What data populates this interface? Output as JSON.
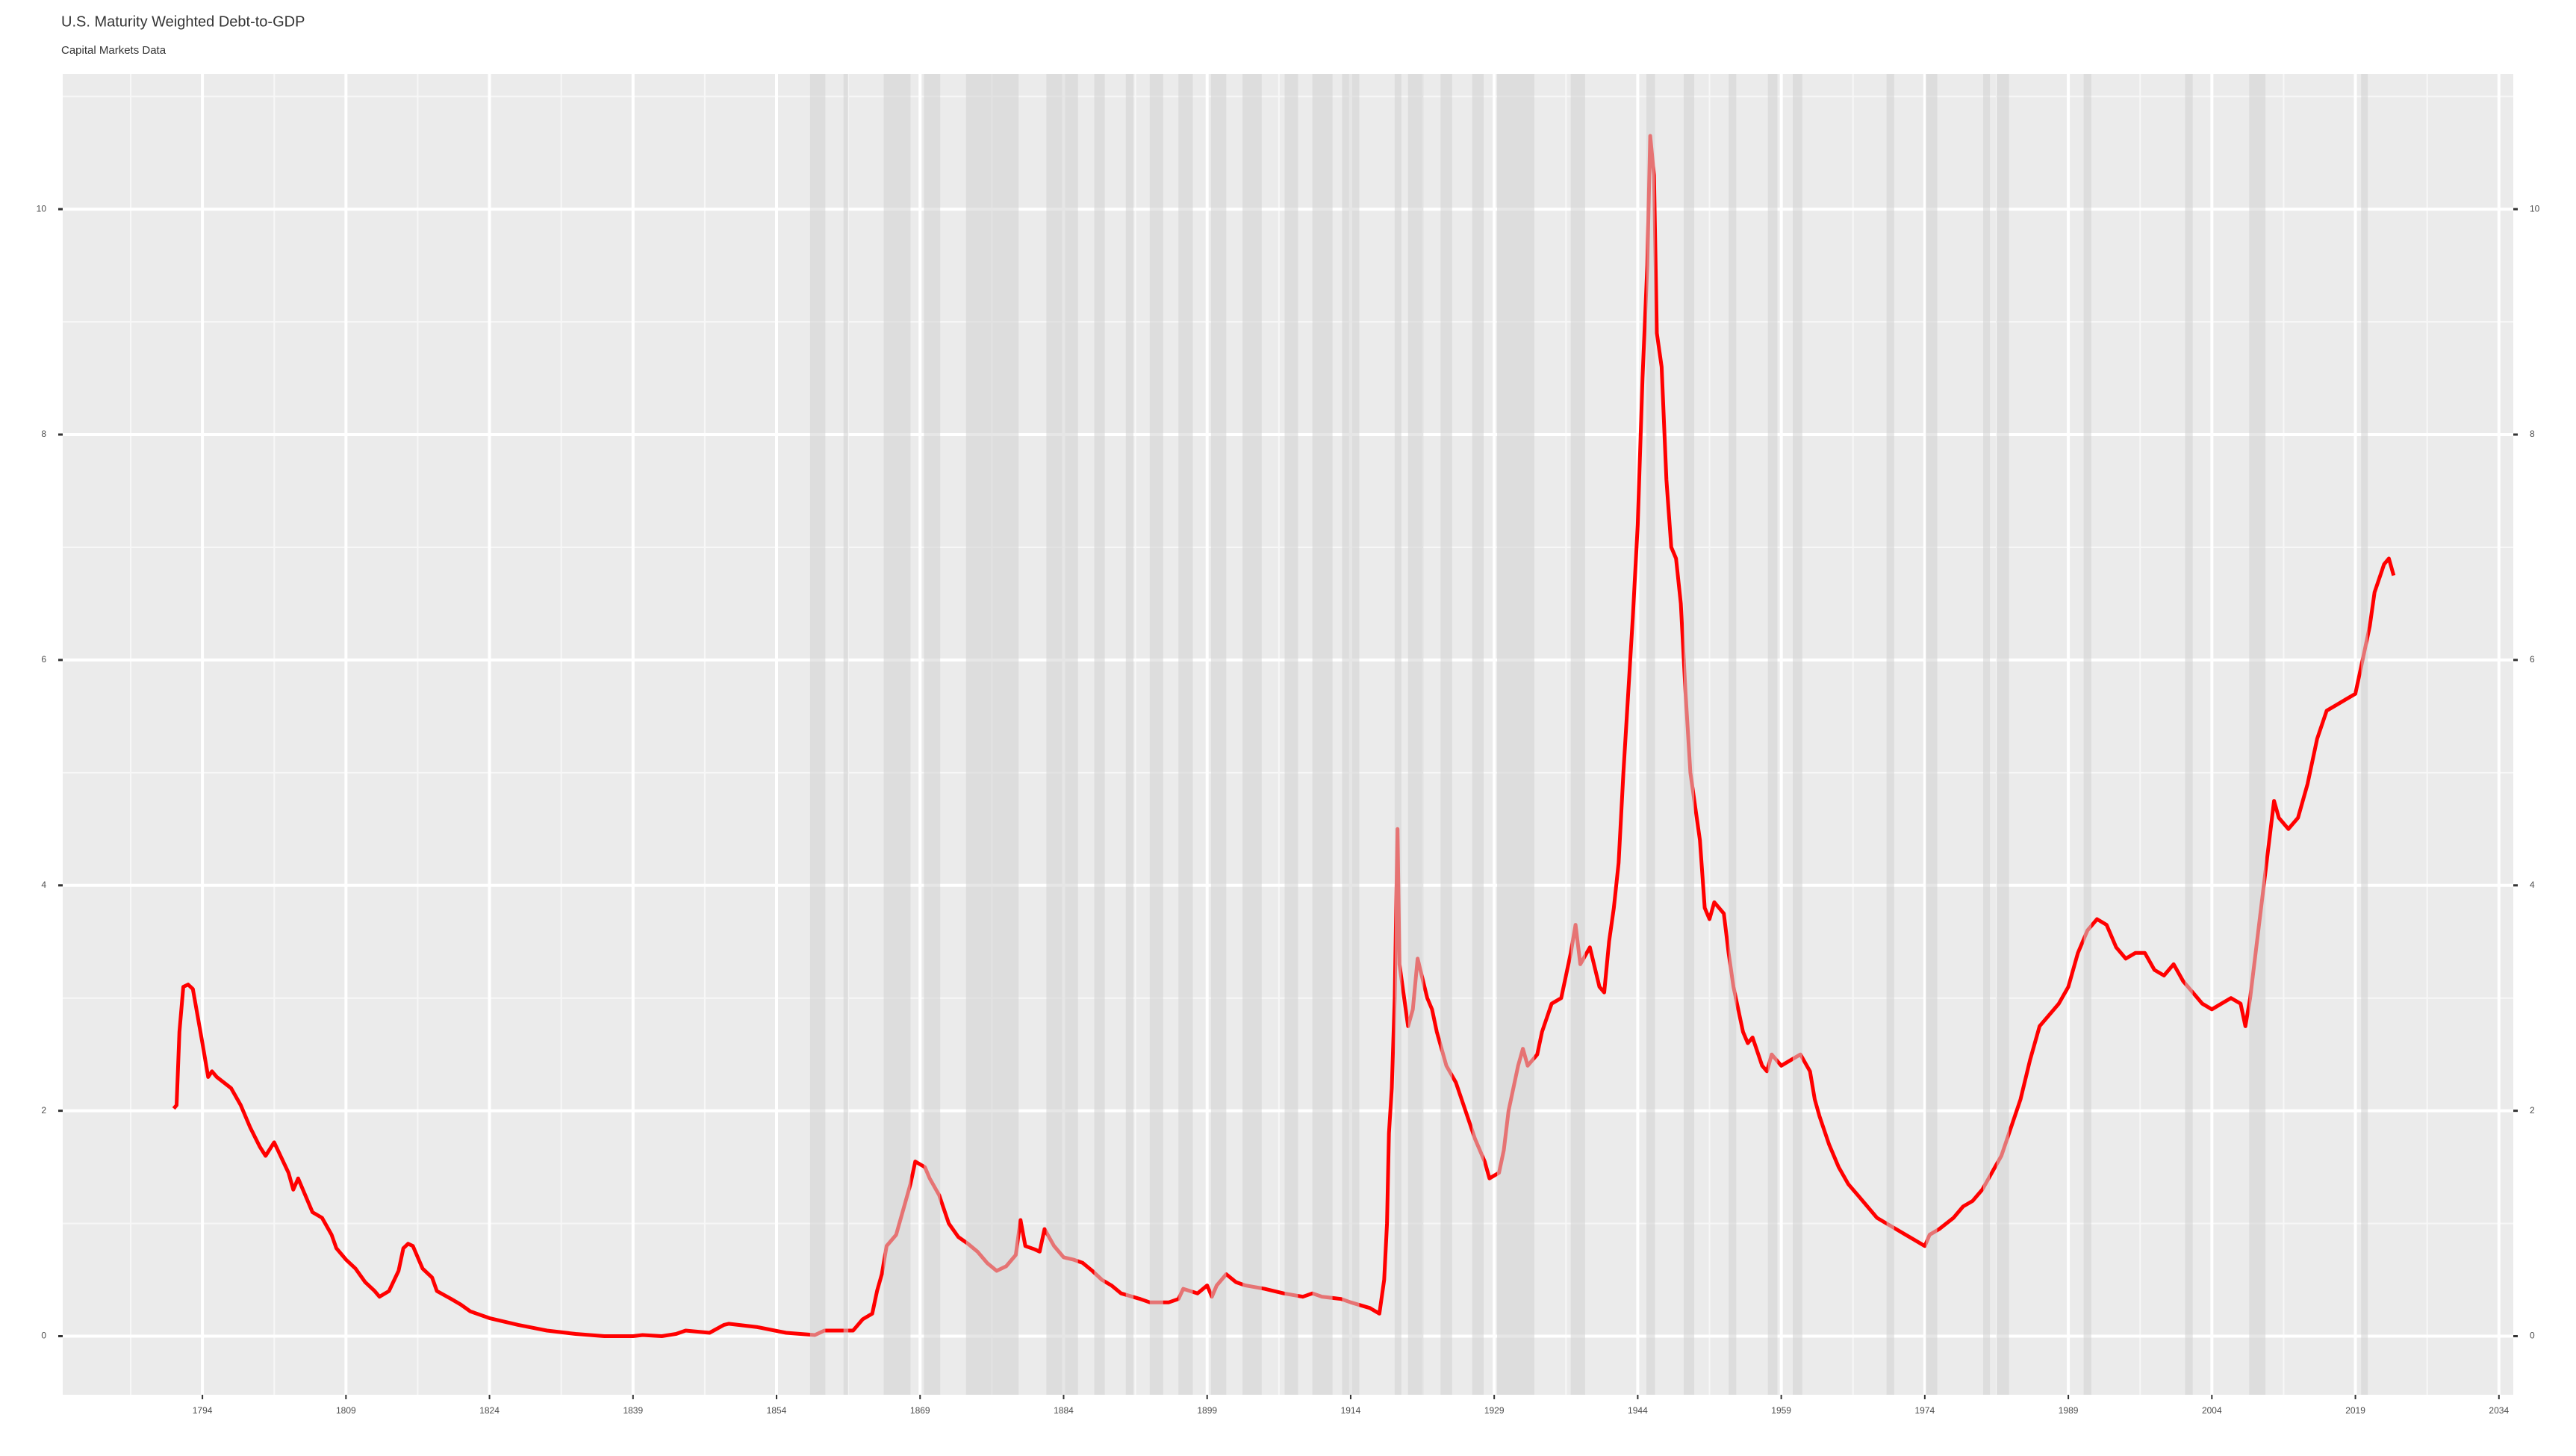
{
  "chart_data": {
    "type": "line",
    "title": "U.S. Maturity Weighted Debt-to-GDP",
    "subtitle": "Capital Markets Data",
    "xlim": [
      1779.4,
      2035.5
    ],
    "xticks": [
      1794,
      1809,
      1824,
      1839,
      1854,
      1869,
      1884,
      1899,
      1914,
      1929,
      1944,
      1959,
      1974,
      1989,
      2004,
      2019,
      2034
    ],
    "ylim": [
      -0.52,
      11.2
    ],
    "yticks": [
      0,
      2,
      4,
      6,
      8,
      10
    ],
    "grid": true,
    "secondary_axis_mirrored": true,
    "shaded_color": "#d2d2d2",
    "shaded_periods": [
      [
        1857.5,
        1859.1
      ],
      [
        1861,
        1861.5
      ],
      [
        1865.2,
        1868
      ],
      [
        1869.4,
        1871.1
      ],
      [
        1873.8,
        1879.3
      ],
      [
        1882.2,
        1885.5
      ],
      [
        1887.2,
        1888.3
      ],
      [
        1890.5,
        1891.3
      ],
      [
        1893,
        1894.4
      ],
      [
        1896,
        1897.5
      ],
      [
        1899.4,
        1901
      ],
      [
        1902.7,
        1904.7
      ],
      [
        1907.1,
        1908.5
      ],
      [
        1910,
        1912.1
      ],
      [
        1913.1,
        1914.9
      ],
      [
        1918.6,
        1919.3
      ],
      [
        1920,
        1921.6
      ],
      [
        1923.4,
        1924.6
      ],
      [
        1926.7,
        1927.9
      ],
      [
        1929.3,
        1933.2
      ],
      [
        1937,
        1938.5
      ],
      [
        1944.9,
        1945.8
      ],
      [
        1948.8,
        1949.9
      ],
      [
        1953.5,
        1954.3
      ],
      [
        1957.6,
        1958.6
      ],
      [
        1960.2,
        1961.2
      ],
      [
        1970,
        1970.8
      ],
      [
        1974.1,
        1975.3
      ],
      [
        1980.1,
        1980.8
      ],
      [
        1981.5,
        1982.8
      ],
      [
        1990.6,
        1991.4
      ],
      [
        2001.2,
        2002
      ],
      [
        2007.9,
        2009.6
      ],
      [
        2019.6,
        2020.3
      ]
    ],
    "series": [
      {
        "color": "#ff0000",
        "x": [
          1791,
          1791.3,
          1791.6,
          1792,
          1792.5,
          1793,
          1794,
          1794.6,
          1795,
          1795.5,
          1797,
          1798,
          1799,
          1800,
          1800.6,
          1801.5,
          1803,
          1803.5,
          1804,
          1805.5,
          1806.5,
          1807.5,
          1808,
          1809,
          1810,
          1811,
          1812,
          1812.5,
          1813.5,
          1814.5,
          1815,
          1815.5,
          1816,
          1817,
          1818,
          1818.5,
          1820,
          1821,
          1822,
          1824,
          1827,
          1830,
          1833,
          1836,
          1839,
          1840,
          1842,
          1843.5,
          1844.5,
          1847,
          1848.5,
          1849,
          1852,
          1855,
          1858,
          1859,
          1862,
          1863,
          1864,
          1864.5,
          1865,
          1865.5,
          1866.5,
          1867.5,
          1868,
          1868.5,
          1869.5,
          1870,
          1871,
          1872,
          1873,
          1874,
          1875,
          1876,
          1877,
          1878,
          1879,
          1879.5,
          1880,
          1881,
          1881.5,
          1882,
          1883,
          1884,
          1885,
          1886,
          1887,
          1888,
          1889,
          1890,
          1892,
          1893,
          1895,
          1896,
          1896.5,
          1898,
          1899,
          1899.5,
          1900,
          1901,
          1902,
          1903,
          1905,
          1907,
          1909,
          1910,
          1911,
          1913,
          1914,
          1916,
          1917,
          1917.5,
          1917.8,
          1918,
          1918.3,
          1918.6,
          1918.9,
          1919.1,
          1920,
          1920.5,
          1921,
          1922,
          1922.5,
          1923,
          1924,
          1925,
          1926,
          1927,
          1928,
          1928.5,
          1929.5,
          1930,
          1930.5,
          1931.5,
          1932,
          1932.5,
          1933.5,
          1934,
          1935,
          1936,
          1936.5,
          1937,
          1937.5,
          1938,
          1939,
          1940,
          1940.5,
          1941,
          1941.5,
          1942,
          1942.5,
          1943,
          1943.5,
          1944,
          1944.5,
          1945,
          1945.3,
          1945.7,
          1946,
          1946.5,
          1947,
          1947.5,
          1948,
          1948.5,
          1949,
          1949.5,
          1950,
          1950.5,
          1951,
          1951.5,
          1952,
          1953,
          1953.5,
          1954,
          1955,
          1955.5,
          1956,
          1957,
          1957.5,
          1958,
          1959,
          1960,
          1961,
          1962,
          1962.5,
          1963,
          1964,
          1965,
          1966,
          1967,
          1968,
          1969,
          1970,
          1971,
          1972,
          1973,
          1974,
          1974.5,
          1975.5,
          1977,
          1978,
          1979,
          1980,
          1981,
          1982,
          1983,
          1984,
          1985,
          1986,
          1987,
          1988,
          1989,
          1990,
          1991,
          1992,
          1993,
          1994,
          1995,
          1996,
          1997,
          1998,
          1999,
          2000,
          2001,
          2002,
          2003,
          2004,
          2005,
          2006,
          2007,
          2007.5,
          2008,
          2009,
          2010,
          2010.5,
          2011,
          2012,
          2013,
          2014,
          2015,
          2016,
          2017,
          2018,
          2019,
          2020,
          2020.5,
          2021,
          2022,
          2022.5,
          2023
        ],
        "values": [
          2.02,
          2.05,
          2.7,
          3.1,
          3.12,
          3.08,
          2.6,
          2.3,
          2.35,
          2.3,
          2.2,
          2.05,
          1.85,
          1.68,
          1.6,
          1.72,
          1.45,
          1.3,
          1.4,
          1.1,
          1.05,
          0.9,
          0.78,
          0.68,
          0.6,
          0.48,
          0.4,
          0.35,
          0.4,
          0.58,
          0.78,
          0.82,
          0.8,
          0.6,
          0.52,
          0.4,
          0.33,
          0.28,
          0.22,
          0.16,
          0.1,
          0.05,
          0.02,
          0.0,
          0.0,
          0.01,
          0.0,
          0.02,
          0.05,
          0.03,
          0.1,
          0.11,
          0.08,
          0.03,
          0.01,
          0.05,
          0.05,
          0.15,
          0.2,
          0.4,
          0.55,
          0.8,
          0.9,
          1.2,
          1.35,
          1.55,
          1.5,
          1.4,
          1.25,
          1.0,
          0.88,
          0.82,
          0.75,
          0.65,
          0.58,
          0.62,
          0.72,
          1.03,
          0.8,
          0.77,
          0.75,
          0.95,
          0.8,
          0.7,
          0.68,
          0.65,
          0.58,
          0.5,
          0.45,
          0.38,
          0.33,
          0.3,
          0.3,
          0.33,
          0.42,
          0.38,
          0.45,
          0.35,
          0.45,
          0.55,
          0.48,
          0.45,
          0.42,
          0.38,
          0.35,
          0.38,
          0.35,
          0.33,
          0.3,
          0.25,
          0.2,
          0.5,
          1.0,
          1.8,
          2.2,
          3.0,
          4.5,
          3.3,
          2.75,
          2.9,
          3.35,
          3.0,
          2.9,
          2.7,
          2.4,
          2.25,
          2.0,
          1.75,
          1.55,
          1.4,
          1.45,
          1.65,
          2.0,
          2.4,
          2.55,
          2.4,
          2.5,
          2.7,
          2.95,
          3.0,
          3.2,
          3.4,
          3.65,
          3.3,
          3.45,
          3.1,
          3.05,
          3.5,
          3.8,
          4.2,
          5.0,
          5.7,
          6.4,
          7.2,
          8.5,
          9.5,
          10.65,
          10.3,
          8.9,
          8.6,
          7.6,
          7.0,
          6.9,
          6.5,
          5.7,
          5.0,
          4.7,
          4.4,
          3.8,
          3.7,
          3.85,
          3.75,
          3.4,
          3.1,
          2.7,
          2.6,
          2.65,
          2.4,
          2.35,
          2.5,
          2.4,
          2.45,
          2.5,
          2.35,
          2.1,
          1.95,
          1.7,
          1.5,
          1.35,
          1.25,
          1.15,
          1.05,
          1.0,
          0.95,
          0.9,
          0.85,
          0.8,
          0.9,
          0.95,
          1.05,
          1.15,
          1.2,
          1.3,
          1.45,
          1.6,
          1.85,
          2.1,
          2.45,
          2.75,
          2.85,
          2.95,
          3.1,
          3.4,
          3.6,
          3.7,
          3.65,
          3.45,
          3.35,
          3.4,
          3.4,
          3.25,
          3.2,
          3.3,
          3.15,
          3.05,
          2.95,
          2.9,
          2.95,
          3.0,
          2.95,
          2.75,
          3.0,
          3.7,
          4.4,
          4.75,
          4.6,
          4.5,
          4.6,
          4.9,
          5.3,
          5.55,
          5.6,
          5.65,
          5.7,
          6.1,
          6.3,
          6.6,
          6.85,
          6.9,
          6.75
        ]
      }
    ]
  }
}
